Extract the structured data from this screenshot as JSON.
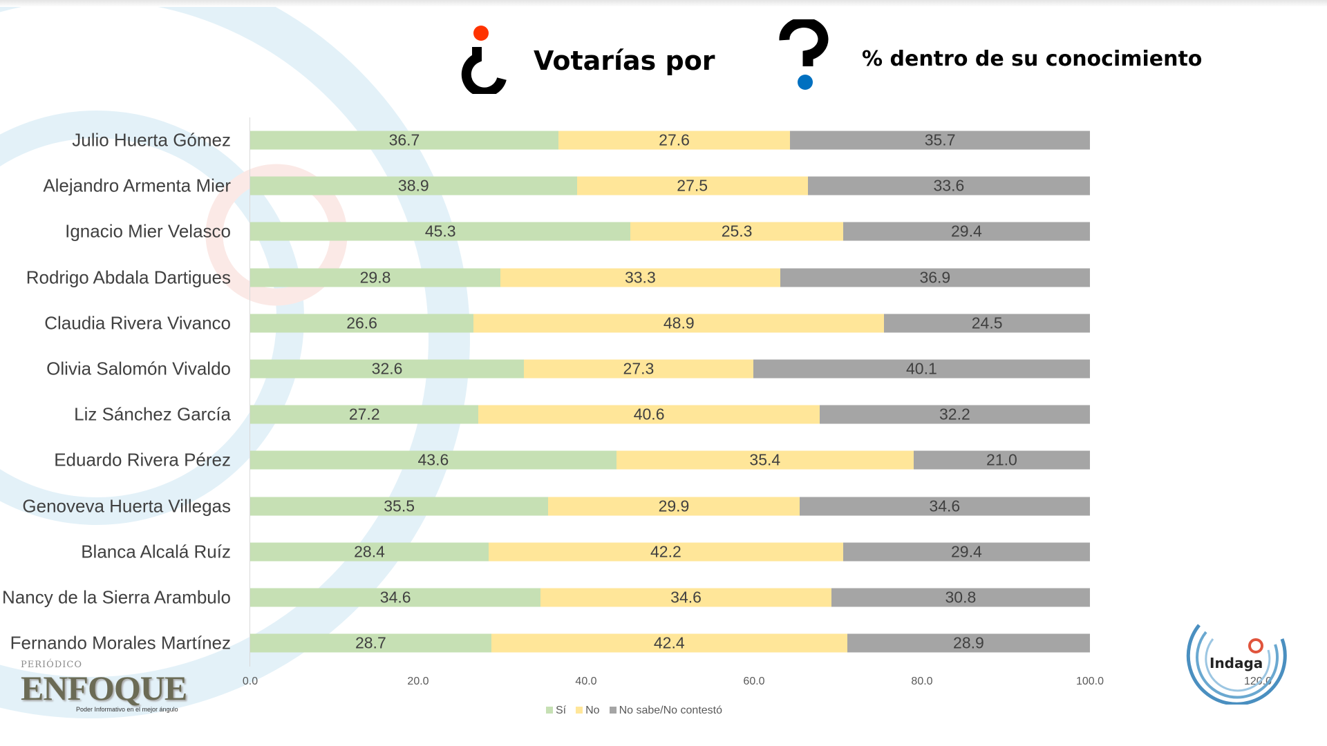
{
  "title": {
    "part1": "Votarías por",
    "part2": "% dentro de su conocimiento"
  },
  "colors": {
    "si": "#c6e0b4",
    "no": "#ffe699",
    "nosabe": "#a5a5a5",
    "dot_red": "#ff3300",
    "dot_blue": "#0070c0"
  },
  "chart_data": {
    "type": "bar",
    "orientation": "horizontal",
    "stacked": true,
    "categories": [
      "Julio Huerta Gómez",
      "Alejandro Armenta Mier",
      "Ignacio Mier Velasco",
      "Rodrigo Abdala Dartigues",
      "Claudia Rivera Vivanco",
      "Olivia Salomón Vivaldo",
      "Liz Sánchez García",
      "Eduardo Rivera Pérez",
      "Genoveva Huerta Villegas",
      "Blanca Alcalá Ruíz",
      "Nancy de la Sierra Arambulo",
      "Fernando Morales Martínez"
    ],
    "series": [
      {
        "name": "Sí",
        "values": [
          36.7,
          38.9,
          45.3,
          29.8,
          26.6,
          32.6,
          27.2,
          43.6,
          35.5,
          28.4,
          34.6,
          28.7
        ]
      },
      {
        "name": "No",
        "values": [
          27.6,
          27.5,
          25.3,
          33.3,
          48.9,
          27.3,
          40.6,
          35.4,
          29.9,
          42.2,
          34.6,
          42.4
        ]
      },
      {
        "name": "No sabe/No contestó",
        "values": [
          35.7,
          33.6,
          29.4,
          36.9,
          24.5,
          40.1,
          32.2,
          21.0,
          34.6,
          29.4,
          30.8,
          28.9
        ]
      }
    ],
    "xlim": [
      0,
      120
    ],
    "xticks": [
      "0.0",
      "20.0",
      "40.0",
      "60.0",
      "80.0",
      "100.0",
      "120.0"
    ],
    "legend_position": "bottom",
    "grid": false
  },
  "logos": {
    "enfoque_top": "PERIÓDICO",
    "enfoque": "ENFOQUE",
    "enfoque_slogan": "Poder Informativo en el mejor ángulo",
    "indaga": "Indaga"
  }
}
